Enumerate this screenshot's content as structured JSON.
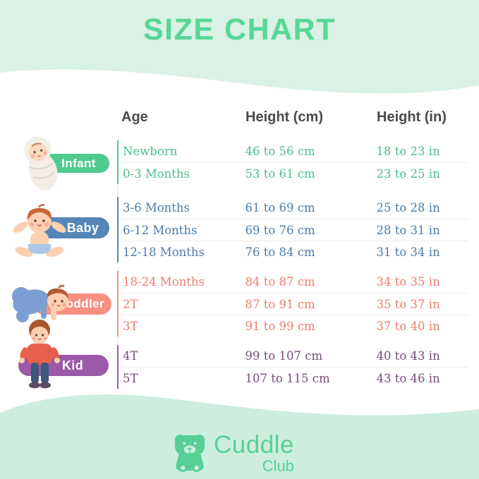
{
  "title": "SIZE CHART",
  "colors": {
    "background_mint": "#daf1e5",
    "wave_mint": "#cdeede",
    "card_white": "#ffffff",
    "title_green": "#57d796",
    "header_text": "#4a4a4a",
    "row_divider": "#ececec",
    "logo_green": "#57d095"
  },
  "table": {
    "headers": [
      "Age",
      "Height (cm)",
      "Height (in)"
    ],
    "groups": [
      {
        "label": "Infant",
        "color": "#50cb8e",
        "text_color": "#4dbd8a",
        "rows": [
          [
            "Newborn",
            "46 to 56 cm",
            "18 to 23 in"
          ],
          [
            "0-3 Months",
            "53 to 61 cm",
            "23 to 25 in"
          ]
        ]
      },
      {
        "label": "Baby",
        "color": "#5586b8",
        "text_color": "#4d7ca9",
        "rows": [
          [
            "3-6 Months",
            "61 to 69 cm",
            "25 to 28 in"
          ],
          [
            "6-12 Months",
            "69 to 76 cm",
            "28 to 31 in"
          ],
          [
            "12-18 Months",
            "76 to 84 cm",
            "31 to 34 in"
          ]
        ]
      },
      {
        "label": "Toddler",
        "color": "#f5917f",
        "text_color": "#ec7d6e",
        "rows": [
          [
            "18-24 Months",
            "84 to 87 cm",
            "34 to 35 in"
          ],
          [
            "2T",
            "87 to 91 cm",
            "35 to 37 in"
          ],
          [
            "3T",
            "91 to 99 cm",
            "37 to 40 in"
          ]
        ]
      },
      {
        "label": "Kid",
        "color": "#9c59a8",
        "text_color": "#7b4a79",
        "rows": [
          [
            "4T",
            "99 to 107 cm",
            "40 to 43 in"
          ],
          [
            "5T",
            "107 to 115 cm",
            "43 to 46 in"
          ]
        ]
      }
    ]
  },
  "logo": {
    "brand": "Cuddle",
    "sub": "Club"
  }
}
